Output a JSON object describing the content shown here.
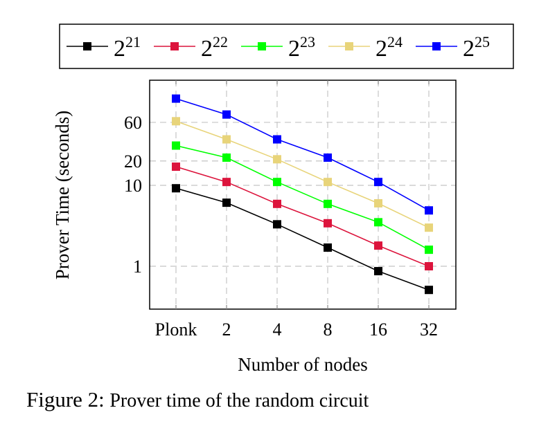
{
  "chart_data": {
    "type": "line",
    "title": "",
    "xlabel": "Number of nodes",
    "ylabel": "Prover Time (seconds)",
    "yscale": "log",
    "ylim": [
      0.3,
      200
    ],
    "grid": true,
    "legend_position": "top",
    "categories": [
      "Plonk",
      "2",
      "4",
      "8",
      "16",
      "32"
    ],
    "yticks": [
      1,
      10,
      20,
      60
    ],
    "ytick_labels": [
      "1",
      "10",
      "20",
      "60"
    ],
    "series": [
      {
        "name": "2^21",
        "base": "2",
        "exponent": "21",
        "color": "#000000",
        "values": [
          9.2,
          6.1,
          3.3,
          1.7,
          0.87,
          0.51
        ]
      },
      {
        "name": "2^22",
        "base": "2",
        "exponent": "22",
        "color": "#dc143c",
        "values": [
          17,
          11,
          5.9,
          3.4,
          1.8,
          1.0
        ]
      },
      {
        "name": "2^23",
        "base": "2",
        "exponent": "23",
        "color": "#00ff00",
        "values": [
          31,
          22,
          11,
          5.9,
          3.5,
          1.6
        ]
      },
      {
        "name": "2^24",
        "base": "2",
        "exponent": "24",
        "color": "#e8d47a",
        "values": [
          62,
          37,
          21,
          11,
          6.0,
          3.0
        ]
      },
      {
        "name": "2^25",
        "base": "2",
        "exponent": "25",
        "color": "#0000ff",
        "values": [
          118,
          75,
          37,
          22,
          11,
          4.9
        ]
      }
    ]
  },
  "caption": {
    "prefix": "Figure 2:",
    "text": "Prover time of the random circuit"
  }
}
